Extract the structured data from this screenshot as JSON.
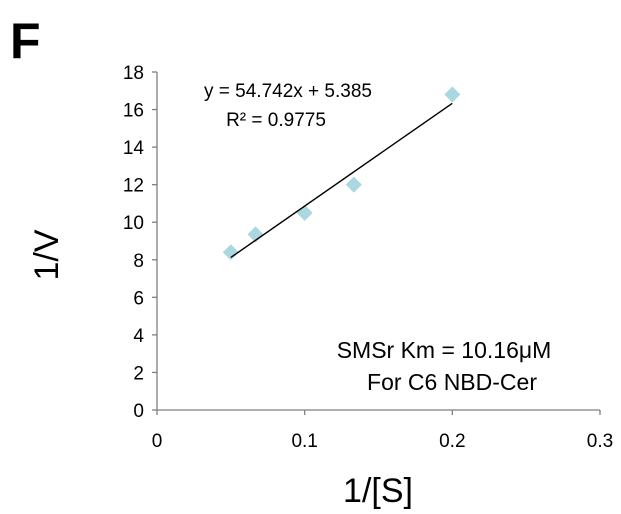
{
  "panel_label": "F",
  "chart_data": {
    "type": "scatter",
    "xlabel": "1/[S]",
    "ylabel": "1/V",
    "xlim": [
      0,
      0.3
    ],
    "ylim": [
      0,
      18
    ],
    "x_ticks": [
      0,
      0.1,
      0.2,
      0.3
    ],
    "x_tick_labels": [
      "0",
      "0.1",
      "0.2",
      "0.3"
    ],
    "y_ticks": [
      0,
      2,
      4,
      6,
      8,
      10,
      12,
      14,
      16,
      18
    ],
    "y_tick_labels": [
      "0",
      "2",
      "4",
      "6",
      "8",
      "10",
      "12",
      "14",
      "16",
      "18"
    ],
    "grid": false,
    "series": [
      {
        "marker": "diamond",
        "color": "#a9d8e0",
        "points": [
          {
            "x": 0.05,
            "y": 8.4
          },
          {
            "x": 0.0667,
            "y": 9.35
          },
          {
            "x": 0.1,
            "y": 10.5
          },
          {
            "x": 0.1333,
            "y": 12.0
          },
          {
            "x": 0.2,
            "y": 16.8
          }
        ]
      }
    ],
    "trendline": {
      "type": "linear",
      "slope": 54.742,
      "intercept": 5.385,
      "x_range": [
        0.05,
        0.2
      ],
      "color": "#000000"
    },
    "annotations": {
      "equation": "y = 54.742x + 5.385",
      "r_squared": "R² = 0.9775",
      "note_line1": "SMSr Km = 10.16μM",
      "note_line2": "For C6 NBD-Cer"
    }
  }
}
